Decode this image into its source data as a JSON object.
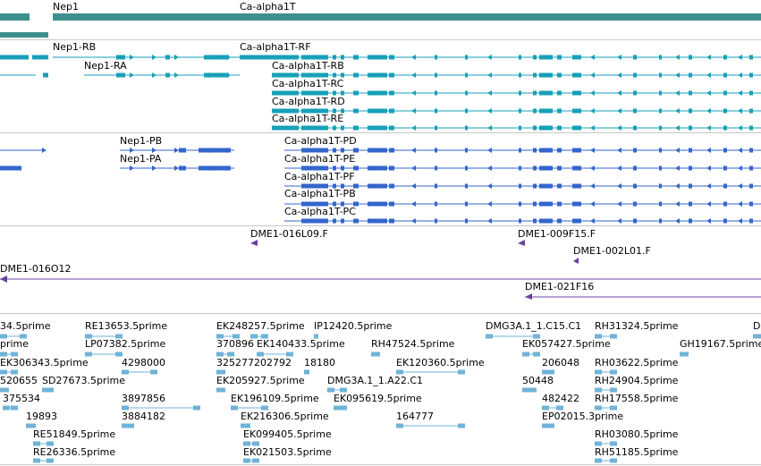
{
  "gene_track": {
    "color": "#3f8f8f",
    "labels": [
      "Nep1",
      "Ca-alpha1T"
    ]
  },
  "transcript_track": {
    "color": "#17a0b8",
    "labels": [
      "Nep1-RB",
      "Nep1-RA",
      "Ca-alpha1T-RF",
      "Ca-alpha1T-RB",
      "Ca-alpha1T-RC",
      "Ca-alpha1T-RD",
      "Ca-alpha1T-RE"
    ]
  },
  "protein_track": {
    "color": "#3366cc",
    "labels": [
      "Nep1-PB",
      "Nep1-PA",
      "Ca-alpha1T-PD",
      "Ca-alpha1T-PE",
      "Ca-alpha1T-PF",
      "Ca-alpha1T-PB",
      "Ca-alpha1T-PC"
    ]
  },
  "bac_track": {
    "color": "#6b3fa0",
    "labels": [
      "DME1-016L09.F",
      "DME1-009F15.F",
      "DME1-002L01.F",
      "DME1-016O12",
      "DME1-021F16"
    ]
  },
  "est_track": {
    "color": "#6fb3d8",
    "labels": [
      "34.5prime",
      "RE13653.5prime",
      "EK248257.5prime",
      "IP12420.5prime",
      "DMG3A.1_1.C15.C1",
      "RH31324.5prime",
      "D",
      "prime",
      "LP07382.5prime",
      "370896",
      "EK140433.5prime",
      "RH47524.5prime",
      "EK057427.5prime",
      "GH19167.5prime",
      "EK306343.5prime",
      "4298000",
      "325277202792",
      "18180",
      "EK120360.5prime",
      "206048",
      "RH03622.5prime",
      "520655",
      "SD27673.5prime",
      "EK205927.5prime",
      "DMG3A.1_1.A22.C1",
      "50448",
      "RH24904.5prime",
      "375534",
      "3897856",
      "EK196109.5prime",
      "EK095619.5prime",
      "482422",
      "RH17558.5prime",
      "19893",
      "3884182",
      "EK216306.5prime",
      "164777",
      "EP02015.3prime",
      "RE51849.5prime",
      "EK099405.5prime",
      "RH03080.5prime",
      "RE26336.5prime",
      "EK021503.5prime",
      "RH51185.5prime"
    ]
  }
}
